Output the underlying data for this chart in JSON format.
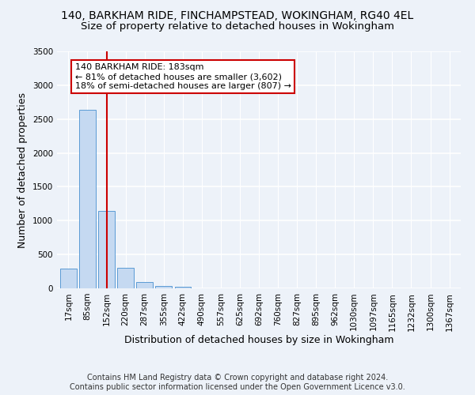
{
  "title_line1": "140, BARKHAM RIDE, FINCHAMPSTEAD, WOKINGHAM, RG40 4EL",
  "title_line2": "Size of property relative to detached houses in Wokingham",
  "xlabel": "Distribution of detached houses by size in Wokingham",
  "ylabel": "Number of detached properties",
  "bar_color": "#c5d9f1",
  "bar_edge_color": "#5b9bd5",
  "categories": [
    "17sqm",
    "85sqm",
    "152sqm",
    "220sqm",
    "287sqm",
    "355sqm",
    "422sqm",
    "490sqm",
    "557sqm",
    "625sqm",
    "692sqm",
    "760sqm",
    "827sqm",
    "895sqm",
    "962sqm",
    "1030sqm",
    "1097sqm",
    "1165sqm",
    "1232sqm",
    "1300sqm",
    "1367sqm"
  ],
  "values": [
    295,
    2640,
    1140,
    300,
    95,
    40,
    25,
    0,
    0,
    0,
    0,
    0,
    0,
    0,
    0,
    0,
    0,
    0,
    0,
    0,
    0
  ],
  "ylim": [
    0,
    3500
  ],
  "yticks": [
    0,
    500,
    1000,
    1500,
    2000,
    2500,
    3000,
    3500
  ],
  "property_line_x": 2.0,
  "annotation_text": "140 BARKHAM RIDE: 183sqm\n← 81% of detached houses are smaller (3,602)\n18% of semi-detached houses are larger (807) →",
  "annotation_box_color": "#ffffff",
  "annotation_box_edge": "#cc0000",
  "red_line_color": "#cc0000",
  "footer_line1": "Contains HM Land Registry data © Crown copyright and database right 2024.",
  "footer_line2": "Contains public sector information licensed under the Open Government Licence v3.0.",
  "background_color": "#edf2f9",
  "plot_background": "#edf2f9",
  "grid_color": "#ffffff",
  "title_fontsize": 10,
  "subtitle_fontsize": 9.5,
  "axis_label_fontsize": 9,
  "tick_fontsize": 7.5,
  "annotation_fontsize": 8,
  "footer_fontsize": 7
}
